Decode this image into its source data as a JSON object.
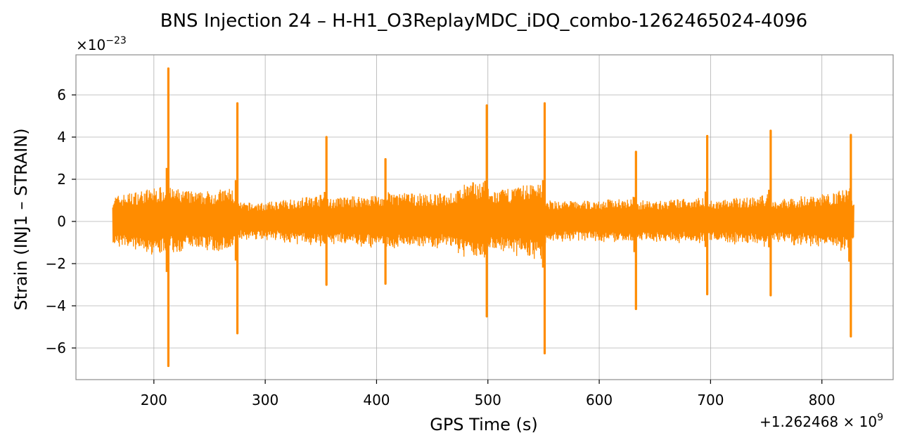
{
  "chart_data": {
    "type": "line",
    "title": "BNS Injection 24 – H-H1_O3ReplayMDC_iDQ_combo-1262465024-4096",
    "xlabel": "GPS Time (s)",
    "ylabel": "Strain (INJ1 – STRAIN)",
    "y_scale_note": "×10",
    "y_scale_exp": "−23",
    "x_offset_note": "+1.262468 × 10",
    "x_offset_exp": "9",
    "xlim": [
      130,
      864
    ],
    "ylim": [
      -7.5,
      7.9
    ],
    "x_ticks": [
      200,
      300,
      400,
      500,
      600,
      700,
      800
    ],
    "x_tick_labels": [
      "200",
      "300",
      "400",
      "500",
      "600",
      "700",
      "800"
    ],
    "y_ticks": [
      -6,
      -4,
      -2,
      0,
      2,
      4,
      6
    ],
    "y_tick_labels": [
      "−6",
      "−4",
      "−2",
      "0",
      "2",
      "4",
      "6"
    ],
    "grid": true,
    "line_color": "#ff8c00",
    "series": [
      {
        "x_range": [
          163,
          829
        ],
        "baseline_envelope": [
          [
            163,
            1.2
          ],
          [
            190,
            1.5
          ],
          [
            210,
            1.7
          ],
          [
            214,
            1.6
          ],
          [
            240,
            1.4
          ],
          [
            270,
            1.6
          ],
          [
            276,
            0.9
          ],
          [
            300,
            0.9
          ],
          [
            352,
            1.3
          ],
          [
            357,
            1.1
          ],
          [
            400,
            1.3
          ],
          [
            405,
            1.2
          ],
          [
            410,
            1.4
          ],
          [
            450,
            1.3
          ],
          [
            470,
            1.4
          ],
          [
            480,
            1.8
          ],
          [
            497,
            2.0
          ],
          [
            502,
            1.4
          ],
          [
            530,
            1.7
          ],
          [
            548,
            2.0
          ],
          [
            552,
            1.0
          ],
          [
            600,
            1.0
          ],
          [
            630,
            1.2
          ],
          [
            635,
            1.0
          ],
          [
            660,
            1.0
          ],
          [
            690,
            1.2
          ],
          [
            697,
            1.0
          ],
          [
            740,
            1.2
          ],
          [
            752,
            1.3
          ],
          [
            756,
            1.0
          ],
          [
            780,
            1.2
          ],
          [
            800,
            1.3
          ],
          [
            825,
            1.6
          ],
          [
            829,
            0.8
          ]
        ],
        "spikes": [
          {
            "x": 213,
            "max": 7.25,
            "min": -6.85
          },
          {
            "x": 275,
            "max": 5.6,
            "min": -5.3
          },
          {
            "x": 355,
            "max": 4.0,
            "min": -3.0
          },
          {
            "x": 408,
            "max": 2.95,
            "min": -2.95
          },
          {
            "x": 499,
            "max": 5.5,
            "min": -4.5
          },
          {
            "x": 551,
            "max": 5.6,
            "min": -6.25
          },
          {
            "x": 633,
            "max": 3.3,
            "min": -4.15
          },
          {
            "x": 697,
            "max": 4.05,
            "min": -3.45
          },
          {
            "x": 754,
            "max": 4.3,
            "min": -3.5
          },
          {
            "x": 826,
            "max": 4.1,
            "min": -5.45
          }
        ]
      }
    ]
  }
}
